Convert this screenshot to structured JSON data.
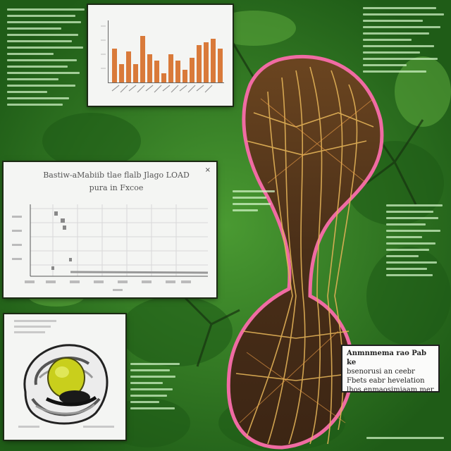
{
  "palette": {
    "background": "#2f7a22",
    "leaf_dark": "#1f5c17",
    "specimen_brown": "#5a3a20",
    "specimen_vein": "#e2b257",
    "specimen_edge": "#f06ba3",
    "bar": "#d97a3a",
    "panel": "#f4f5f3"
  },
  "panels": {
    "top_chart": {
      "bar_levels": [
        0.55,
        0.3,
        0.5,
        0.3,
        0.75,
        0.45,
        0.35,
        0.15,
        0.45,
        0.35,
        0.2,
        0.4,
        0.6,
        0.65,
        0.7,
        0.55
      ]
    },
    "scatter_chart": {
      "title_line1": "Bastiw-aMabiib tlae flalb Jlago LOAD",
      "title_line2": "pura in Fxcoe"
    },
    "caption": {
      "line1": "Anmnmema rao Pab ke",
      "line2": "bsenorusi an ceebr",
      "line3": "Fbets eabr hevelation",
      "line4": "lhos enmaosimiaam mer"
    }
  },
  "icons": {
    "close": "×"
  }
}
